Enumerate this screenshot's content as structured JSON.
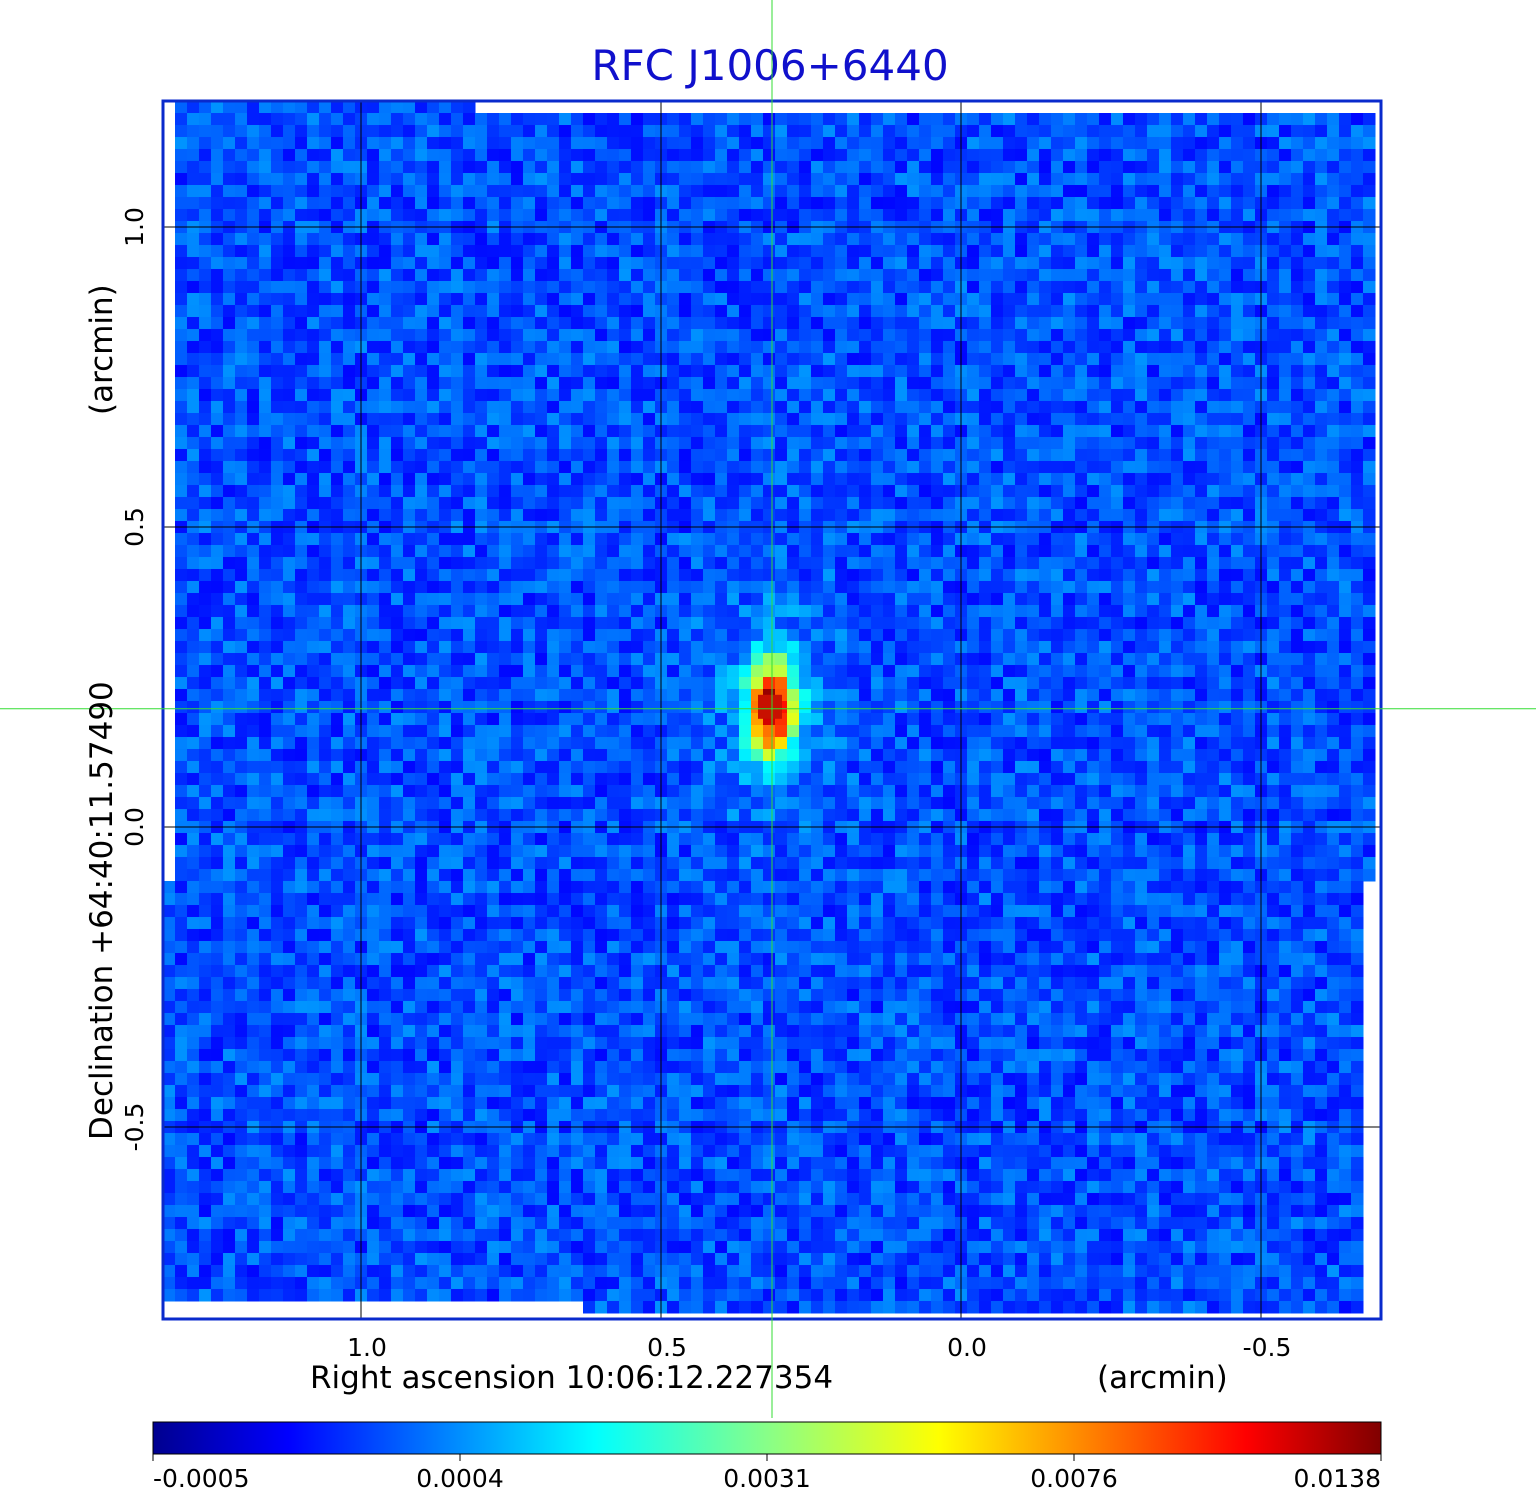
{
  "chart_data": {
    "type": "heatmap",
    "title": "RFC J1006+6440",
    "xlabel": "Right ascension  10:06:12.227354",
    "x_unit": "(arcmin)",
    "ylabel": "Declination  +64:40:11.57490",
    "y_unit": "(arcmin)",
    "x_ticks": [
      1.0,
      0.5,
      0.0,
      -0.5
    ],
    "x_tick_labels": [
      "1.0",
      "0.5",
      "0.0",
      "-0.5"
    ],
    "y_ticks": [
      1.0,
      0.5,
      0.0,
      -0.5
    ],
    "y_tick_labels": [
      "1.0",
      "0.5",
      "0.0",
      "-0.5"
    ],
    "xlim": [
      1.33,
      -0.7
    ],
    "ylim": [
      -0.82,
      1.21
    ],
    "grid": true,
    "crosshair": {
      "x": 0.315,
      "y": 0.197
    },
    "source": {
      "x": 0.315,
      "y": 0.197,
      "peak": 0.0138
    },
    "colorbar": {
      "tick_labels": [
        "-0.0005",
        "0.0004",
        "0.0031",
        "0.0076",
        "0.0138"
      ],
      "colormap": "jet"
    },
    "background_level": 0.0002
  },
  "colors": {
    "title": "#1010cc",
    "frame": "#0a2acc",
    "grid": "#000000",
    "crosshair": "#33dd33"
  }
}
